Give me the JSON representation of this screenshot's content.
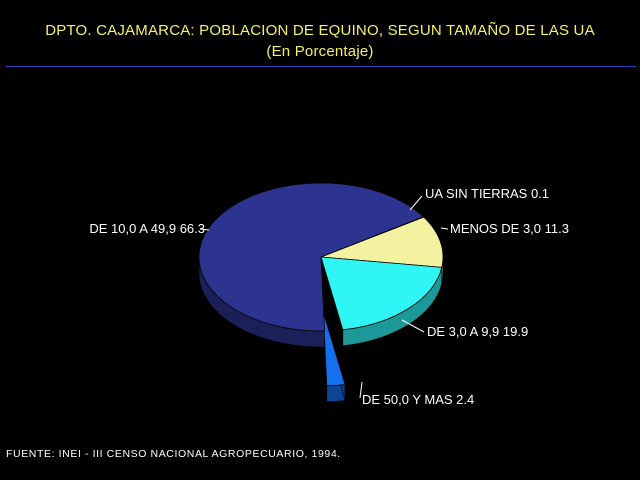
{
  "title": "DPTO. CAJAMARCA: POBLACION DE EQUINO, SEGUN TAMAÑO DE LAS UA",
  "subtitle": "(En Porcentaje)",
  "source": "FUENTE: INEI - III CENSO NACIONAL AGROPECUARIO, 1994.",
  "colors": {
    "title": "#f4f06a",
    "rule": "#2e3fc0",
    "label": "#ffffff"
  },
  "chart_data": {
    "type": "pie",
    "title": "DPTO. CAJAMARCA: POBLACION DE EQUINO, SEGUN TAMAÑO DE LAS UA",
    "subtitle": "(En Porcentaje)",
    "style": "3d exploded pie",
    "slices": [
      {
        "label": "UA SIN TIERRAS",
        "value": 0.1,
        "value_text": "0.1",
        "color": "#f2f2a0",
        "exploded": false
      },
      {
        "label": "MENOS DE 3,0",
        "value": 11.3,
        "value_text": "11.3",
        "color": "#f2f2a0",
        "exploded": false
      },
      {
        "label": "DE 3,0 A 9,9",
        "value": 19.9,
        "value_text": "19.9",
        "color": "#2ff5f5",
        "exploded": false
      },
      {
        "label": "DE 50,0 Y MAS",
        "value": 2.4,
        "value_text": "2.4",
        "color": "#1570ee",
        "exploded": true
      },
      {
        "label": "DE 10,0 A 49,9",
        "value": 66.3,
        "value_text": "66.3",
        "color": "#2d3490",
        "exploded": false
      }
    ]
  }
}
